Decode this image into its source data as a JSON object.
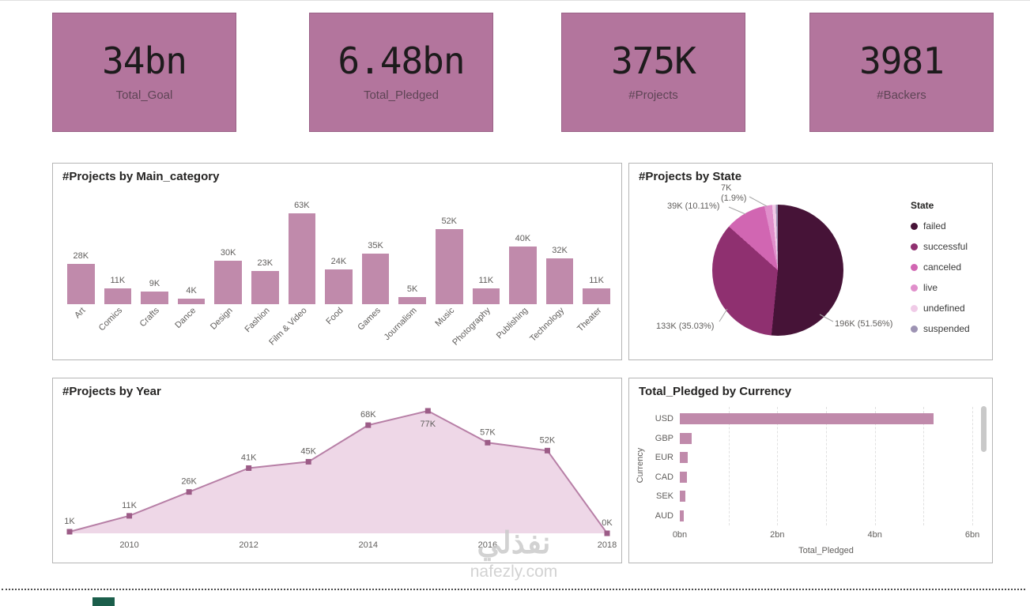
{
  "cards": [
    {
      "value": "34bn",
      "label": "Total_Goal"
    },
    {
      "value": "6.48bn",
      "label": "Total_Pledged"
    },
    {
      "value": "375K",
      "label": "#Projects"
    },
    {
      "value": "3981",
      "label": "#Backers"
    }
  ],
  "colors": {
    "card_bg": "#b3759d",
    "card_border": "#9a6287",
    "bar_fill": "#c08aab",
    "line_stroke": "#b77fa6",
    "line_fill": "#eed7e7",
    "line_marker": "#9c5c87",
    "axis_text": "#605e5c"
  },
  "watermark": {
    "arabic": "نفذلي",
    "domain": "nafezly.com"
  },
  "chart_data": [
    {
      "type": "bar",
      "title": "#Projects by Main_category",
      "categories": [
        "Art",
        "Comics",
        "Crafts",
        "Dance",
        "Design",
        "Fashion",
        "Film & Video",
        "Food",
        "Games",
        "Journalism",
        "Music",
        "Photography",
        "Publishing",
        "Technology",
        "Theater"
      ],
      "values": [
        28,
        11,
        9,
        4,
        30,
        23,
        63,
        24,
        35,
        5,
        52,
        11,
        40,
        32,
        11
      ],
      "value_labels": [
        "28K",
        "11K",
        "9K",
        "4K",
        "30K",
        "23K",
        "63K",
        "24K",
        "35K",
        "5K",
        "52K",
        "11K",
        "40K",
        "32K",
        "11K"
      ],
      "unit": "K",
      "ylim": [
        0,
        63
      ],
      "grid": false
    },
    {
      "type": "pie",
      "title": "#Projects by State",
      "legend_title": "State",
      "legend_position": "right",
      "slices": [
        {
          "label": "failed",
          "value": 196,
          "unit": "K",
          "pct": 51.56,
          "value_label": "196K (51.56%)",
          "color": "#461337"
        },
        {
          "label": "successful",
          "value": 133,
          "unit": "K",
          "pct": 35.03,
          "value_label": "133K (35.03%)",
          "color": "#8f3070"
        },
        {
          "label": "canceled",
          "value": 39,
          "unit": "K",
          "pct": 10.11,
          "value_label": "39K (10.11%)",
          "color": "#d166b2"
        },
        {
          "label": "live",
          "value": 7,
          "unit": "K",
          "pct": 1.9,
          "value_label": "7K (1.9%)",
          "color": "#e08fcb"
        },
        {
          "label": "undefined",
          "value": null,
          "pct": 0.9,
          "value_label": "",
          "color": "#f0cbe7"
        },
        {
          "label": "suspended",
          "value": null,
          "pct": 0.5,
          "value_label": "",
          "color": "#9d93b3"
        }
      ]
    },
    {
      "type": "area",
      "title": "#Projects by Year",
      "x": [
        2009,
        2010,
        2011,
        2012,
        2013,
        2014,
        2015,
        2016,
        2017,
        2018
      ],
      "values": [
        1,
        11,
        26,
        41,
        45,
        68,
        77,
        57,
        52,
        0
      ],
      "value_labels": [
        "1K",
        "11K",
        "26K",
        "41K",
        "45K",
        "68K",
        "77K",
        "57K",
        "52K",
        "0K"
      ],
      "x_ticks": [
        "2010",
        "2012",
        "2014",
        "2016",
        "2018"
      ],
      "x_tick_indices": [
        1,
        3,
        5,
        7,
        9
      ],
      "unit": "K",
      "ylim": [
        0,
        80
      ],
      "grid": false
    },
    {
      "type": "bar-horizontal",
      "title": "Total_Pledged by Currency",
      "categories": [
        "USD",
        "GBP",
        "EUR",
        "CAD",
        "SEK",
        "AUD"
      ],
      "values": [
        5.2,
        0.25,
        0.16,
        0.14,
        0.11,
        0.08
      ],
      "unit": "bn",
      "xlabel": "Total_Pledged",
      "ylabel": "Currency",
      "x_ticks": [
        "0bn",
        "2bn",
        "4bn",
        "6bn"
      ],
      "x_tick_values": [
        0,
        2,
        4,
        6
      ],
      "xlim": [
        0,
        6
      ],
      "grid": true,
      "scrollbar": true
    }
  ]
}
